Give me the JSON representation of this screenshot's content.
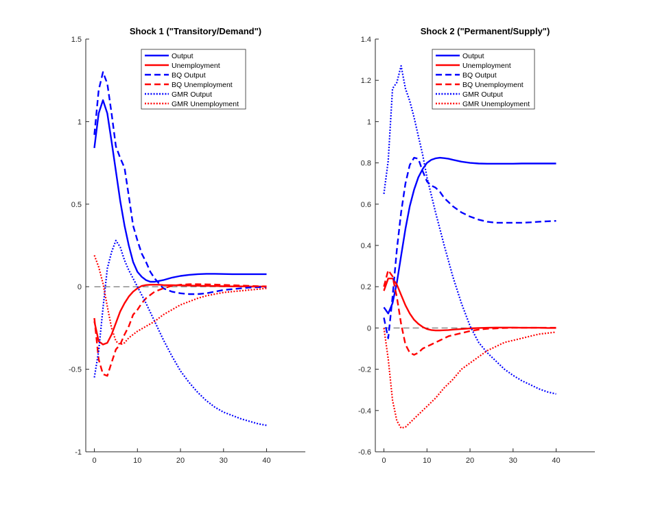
{
  "chart_data": [
    {
      "type": "line",
      "title": "Shock 1 (\"Transitory/Demand\")",
      "xlabel": "",
      "ylabel": "",
      "xlim": [
        -2,
        49
      ],
      "ylim": [
        -1,
        1.5
      ],
      "xticks": [
        0,
        10,
        20,
        30,
        40
      ],
      "yticks": [
        -1,
        -0.5,
        0,
        0.5,
        1,
        1.5
      ],
      "xtick_labels": [
        "0",
        "10",
        "20",
        "30",
        "40"
      ],
      "ytick_labels": [
        "-1",
        "-0.5",
        "0",
        "0.5",
        "1",
        "1.5"
      ],
      "legend_position": "top-right",
      "zero_line": true,
      "series": [
        {
          "name": "Output",
          "color": "#0000ff",
          "style": "solid",
          "x": [
            0,
            1,
            2,
            3,
            4,
            5,
            6,
            7,
            8,
            9,
            10,
            11,
            12,
            13,
            14,
            15,
            16,
            18,
            20,
            22,
            24,
            26,
            28,
            30,
            32,
            34,
            36,
            38,
            40
          ],
          "y": [
            0.84,
            1.05,
            1.13,
            1.05,
            0.88,
            0.7,
            0.52,
            0.37,
            0.25,
            0.15,
            0.09,
            0.06,
            0.04,
            0.03,
            0.03,
            0.035,
            0.04,
            0.055,
            0.065,
            0.072,
            0.076,
            0.078,
            0.078,
            0.077,
            0.076,
            0.076,
            0.076,
            0.076,
            0.076
          ]
        },
        {
          "name": "Unemployment",
          "color": "#ff0000",
          "style": "solid",
          "x": [
            0,
            1,
            2,
            3,
            4,
            5,
            6,
            7,
            8,
            9,
            10,
            11,
            12,
            13,
            14,
            15,
            16,
            18,
            20,
            22,
            24,
            26,
            28,
            30,
            32,
            34,
            36,
            38,
            40
          ],
          "y": [
            -0.21,
            -0.33,
            -0.35,
            -0.34,
            -0.29,
            -0.22,
            -0.15,
            -0.1,
            -0.06,
            -0.03,
            -0.01,
            0.005,
            0.01,
            0.012,
            0.012,
            0.012,
            0.01,
            0.009,
            0.008,
            0.007,
            0.006,
            0.005,
            0.004,
            0.003,
            0.002,
            0.002,
            0.001,
            0.001,
            0.001
          ]
        },
        {
          "name": "BQ Output",
          "color": "#0000ff",
          "style": "dashed",
          "x": [
            0,
            1,
            2,
            3,
            4,
            5,
            6,
            7,
            8,
            9,
            10,
            11,
            12,
            13,
            14,
            15,
            16,
            18,
            20,
            22,
            24,
            26,
            28,
            30,
            32,
            34,
            36,
            38,
            40
          ],
          "y": [
            0.92,
            1.19,
            1.3,
            1.23,
            1.05,
            0.85,
            0.78,
            0.72,
            0.55,
            0.37,
            0.28,
            0.2,
            0.15,
            0.09,
            0.05,
            0.02,
            -0.01,
            -0.03,
            -0.04,
            -0.045,
            -0.045,
            -0.04,
            -0.03,
            -0.02,
            -0.015,
            -0.01,
            -0.005,
            -0.003,
            -0.002
          ]
        },
        {
          "name": "BQ Unemployment",
          "color": "#ff0000",
          "style": "dashed",
          "x": [
            0,
            1,
            2,
            3,
            4,
            5,
            6,
            7,
            8,
            9,
            10,
            11,
            12,
            13,
            14,
            15,
            16,
            18,
            20,
            22,
            24,
            26,
            28,
            30,
            32,
            34,
            36,
            38,
            40
          ],
          "y": [
            -0.19,
            -0.44,
            -0.53,
            -0.54,
            -0.46,
            -0.38,
            -0.35,
            -0.29,
            -0.24,
            -0.17,
            -0.14,
            -0.1,
            -0.07,
            -0.05,
            -0.03,
            -0.02,
            -0.01,
            0.005,
            0.012,
            0.015,
            0.015,
            0.014,
            0.013,
            0.011,
            0.009,
            0.007,
            0.005,
            0.003,
            0.002
          ]
        },
        {
          "name": "GMR Output",
          "color": "#0000ff",
          "style": "dotted",
          "x": [
            0,
            1,
            2,
            3,
            4,
            5,
            6,
            7,
            8,
            9,
            10,
            12,
            14,
            16,
            18,
            20,
            22,
            24,
            26,
            28,
            30,
            32,
            34,
            36,
            38,
            40
          ],
          "y": [
            -0.55,
            -0.39,
            -0.13,
            0.11,
            0.21,
            0.28,
            0.24,
            0.16,
            0.1,
            0.05,
            0.0,
            -0.1,
            -0.21,
            -0.32,
            -0.42,
            -0.51,
            -0.58,
            -0.64,
            -0.69,
            -0.73,
            -0.76,
            -0.78,
            -0.8,
            -0.815,
            -0.83,
            -0.84
          ]
        },
        {
          "name": "GMR Unemployment",
          "color": "#ff0000",
          "style": "dotted",
          "x": [
            0,
            1,
            2,
            3,
            4,
            5,
            6,
            7,
            8,
            9,
            10,
            12,
            14,
            16,
            18,
            20,
            22,
            24,
            26,
            28,
            30,
            32,
            34,
            36,
            38,
            40
          ],
          "y": [
            0.19,
            0.12,
            0.02,
            -0.12,
            -0.25,
            -0.33,
            -0.35,
            -0.34,
            -0.31,
            -0.29,
            -0.27,
            -0.24,
            -0.21,
            -0.17,
            -0.14,
            -0.11,
            -0.09,
            -0.07,
            -0.055,
            -0.045,
            -0.035,
            -0.03,
            -0.025,
            -0.02,
            -0.015,
            -0.01
          ]
        }
      ]
    },
    {
      "type": "line",
      "title": "Shock 2 (\"Permanent/Supply\")",
      "xlabel": "",
      "ylabel": "",
      "xlim": [
        -2,
        49
      ],
      "ylim": [
        -0.6,
        1.4
      ],
      "xticks": [
        0,
        10,
        20,
        30,
        40
      ],
      "yticks": [
        -0.6,
        -0.4,
        -0.2,
        0,
        0.2,
        0.4,
        0.6,
        0.8,
        1,
        1.2,
        1.4
      ],
      "xtick_labels": [
        "0",
        "10",
        "20",
        "30",
        "40"
      ],
      "ytick_labels": [
        "-0.6",
        "-0.4",
        "-0.2",
        "0",
        "0.2",
        "0.4",
        "0.6",
        "0.8",
        "1",
        "1.2",
        "1.4"
      ],
      "legend_position": "top-right",
      "zero_line": true,
      "series": [
        {
          "name": "Output",
          "color": "#0000ff",
          "style": "solid",
          "x": [
            0,
            1,
            2,
            3,
            4,
            5,
            6,
            7,
            8,
            9,
            10,
            11,
            12,
            13,
            14,
            15,
            16,
            18,
            20,
            22,
            24,
            26,
            28,
            30,
            32,
            34,
            36,
            38,
            40
          ],
          "y": [
            0.1,
            0.07,
            0.12,
            0.22,
            0.35,
            0.48,
            0.59,
            0.67,
            0.73,
            0.77,
            0.8,
            0.815,
            0.822,
            0.825,
            0.823,
            0.82,
            0.815,
            0.806,
            0.8,
            0.797,
            0.796,
            0.796,
            0.796,
            0.796,
            0.797,
            0.797,
            0.797,
            0.797,
            0.797
          ]
        },
        {
          "name": "Unemployment",
          "color": "#ff0000",
          "style": "solid",
          "x": [
            0,
            1,
            2,
            3,
            4,
            5,
            6,
            7,
            8,
            9,
            10,
            11,
            12,
            13,
            14,
            15,
            16,
            18,
            20,
            22,
            24,
            26,
            28,
            30,
            32,
            34,
            36,
            38,
            40
          ],
          "y": [
            0.18,
            0.24,
            0.24,
            0.21,
            0.16,
            0.11,
            0.07,
            0.04,
            0.02,
            0.005,
            -0.005,
            -0.01,
            -0.012,
            -0.012,
            -0.011,
            -0.01,
            -0.008,
            -0.005,
            -0.002,
            0.0,
            0.001,
            0.002,
            0.002,
            0.002,
            0.001,
            0.001,
            0.001,
            0.0,
            0.0
          ]
        },
        {
          "name": "BQ Output",
          "color": "#0000ff",
          "style": "dashed",
          "x": [
            0,
            1,
            2,
            3,
            4,
            5,
            6,
            7,
            8,
            9,
            10,
            11,
            12,
            13,
            14,
            15,
            16,
            18,
            20,
            22,
            24,
            26,
            28,
            30,
            32,
            34,
            36,
            38,
            40
          ],
          "y": [
            0.05,
            -0.05,
            0.15,
            0.38,
            0.56,
            0.7,
            0.79,
            0.825,
            0.82,
            0.76,
            0.71,
            0.69,
            0.68,
            0.66,
            0.63,
            0.61,
            0.59,
            0.56,
            0.54,
            0.525,
            0.515,
            0.51,
            0.51,
            0.51,
            0.51,
            0.512,
            0.515,
            0.517,
            0.519
          ]
        },
        {
          "name": "BQ Unemployment",
          "color": "#ff0000",
          "style": "dashed",
          "x": [
            0,
            1,
            2,
            3,
            4,
            5,
            6,
            7,
            8,
            9,
            10,
            11,
            12,
            13,
            14,
            15,
            16,
            18,
            20,
            22,
            24,
            26,
            28,
            30,
            32,
            34,
            36,
            38,
            40
          ],
          "y": [
            0.2,
            0.28,
            0.25,
            0.15,
            0.02,
            -0.08,
            -0.12,
            -0.13,
            -0.12,
            -0.1,
            -0.09,
            -0.08,
            -0.07,
            -0.06,
            -0.05,
            -0.04,
            -0.035,
            -0.025,
            -0.015,
            -0.008,
            -0.004,
            -0.002,
            0.0,
            0.001,
            0.001,
            0.001,
            0.001,
            0.001,
            0.001
          ]
        },
        {
          "name": "GMR Output",
          "color": "#0000ff",
          "style": "dotted",
          "x": [
            0,
            1,
            2,
            3,
            4,
            5,
            6,
            7,
            8,
            9,
            10,
            12,
            14,
            16,
            18,
            20,
            22,
            24,
            26,
            28,
            30,
            32,
            34,
            36,
            38,
            40
          ],
          "y": [
            0.65,
            0.81,
            1.16,
            1.19,
            1.27,
            1.16,
            1.1,
            1.02,
            0.93,
            0.84,
            0.73,
            0.56,
            0.4,
            0.25,
            0.12,
            0.01,
            -0.07,
            -0.12,
            -0.16,
            -0.2,
            -0.23,
            -0.255,
            -0.275,
            -0.295,
            -0.31,
            -0.32
          ]
        },
        {
          "name": "GMR Unemployment",
          "color": "#ff0000",
          "style": "dotted",
          "x": [
            0,
            1,
            2,
            3,
            4,
            5,
            6,
            7,
            8,
            9,
            10,
            12,
            14,
            16,
            18,
            20,
            22,
            24,
            26,
            28,
            30,
            32,
            34,
            36,
            38,
            40
          ],
          "y": [
            0.0,
            -0.15,
            -0.35,
            -0.45,
            -0.485,
            -0.48,
            -0.46,
            -0.44,
            -0.42,
            -0.4,
            -0.38,
            -0.34,
            -0.29,
            -0.25,
            -0.2,
            -0.17,
            -0.14,
            -0.11,
            -0.09,
            -0.07,
            -0.06,
            -0.05,
            -0.04,
            -0.03,
            -0.025,
            -0.02
          ]
        }
      ]
    }
  ]
}
